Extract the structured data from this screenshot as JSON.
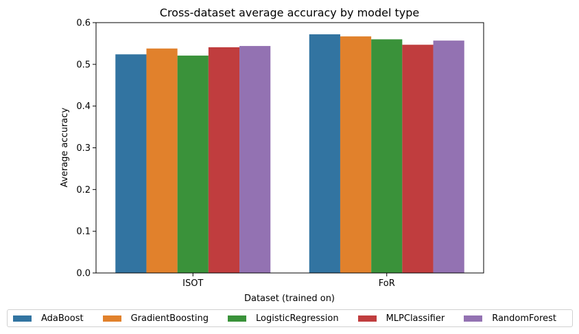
{
  "chart_data": {
    "type": "bar",
    "title": "Cross-dataset average accuracy by model type",
    "xlabel": "Dataset (trained on)",
    "ylabel": "Average accuracy",
    "categories": [
      "ISOT",
      "FoR"
    ],
    "ylim": [
      0,
      0.6
    ],
    "yticks": [
      "0.0",
      "0.1",
      "0.2",
      "0.3",
      "0.4",
      "0.5",
      "0.6"
    ],
    "grid": false,
    "legend_position": "bottom",
    "series": [
      {
        "name": "AdaBoost",
        "color": "#3274a1",
        "values": [
          0.524,
          0.572
        ]
      },
      {
        "name": "GradientBoosting",
        "color": "#e1812c",
        "values": [
          0.538,
          0.567
        ]
      },
      {
        "name": "LogisticRegression",
        "color": "#3a923a",
        "values": [
          0.521,
          0.56
        ]
      },
      {
        "name": "MLPClassifier",
        "color": "#c03d3e",
        "values": [
          0.541,
          0.547
        ]
      },
      {
        "name": "RandomForest",
        "color": "#9372b2",
        "values": [
          0.544,
          0.557
        ]
      }
    ]
  }
}
